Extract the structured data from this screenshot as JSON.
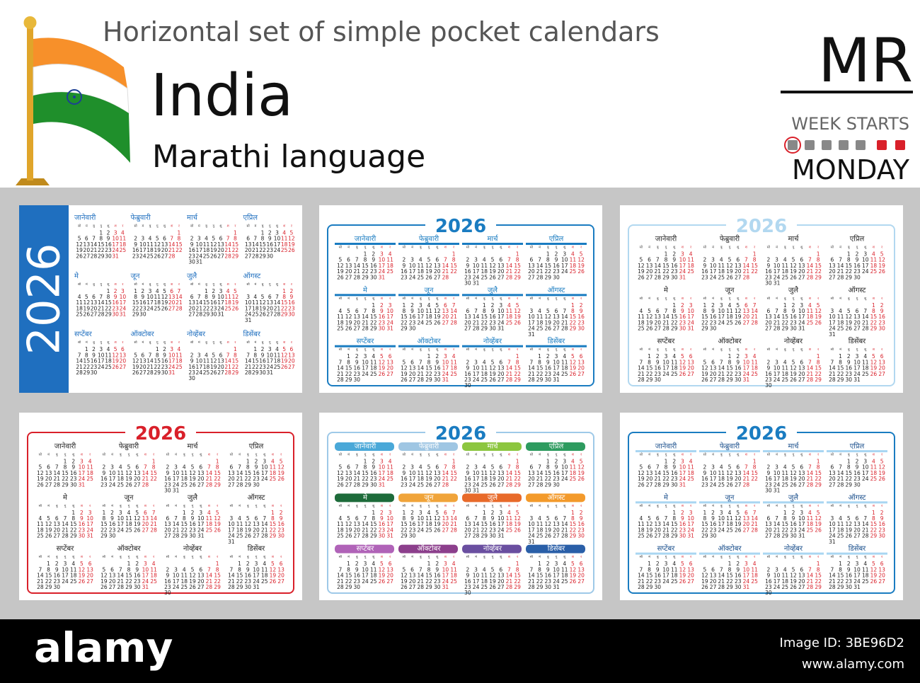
{
  "header": {
    "title": "Horizontal set of simple pocket calendars",
    "country": "India",
    "language": "Marathi language",
    "code": "MR",
    "week_label": "WEEK STARTS",
    "week_start": "MONDAY"
  },
  "calendar": {
    "year": "2026",
    "months": [
      "जानेवारी",
      "फेब्रुवारी",
      "मार्च",
      "एप्रिल",
      "मे",
      "जून",
      "जुलै",
      "ऑगस्ट",
      "सप्टेंबर",
      "ऑक्टोबर",
      "नोव्हेंबर",
      "डिसेंबर"
    ],
    "weekdays": [
      "सो",
      "मं",
      "बु",
      "गु",
      "शु",
      "श",
      "र"
    ],
    "days": [
      1,
      2,
      3,
      4,
      5,
      6,
      7,
      8,
      9,
      10,
      11,
      12,
      13,
      14,
      15,
      16,
      17,
      18,
      19,
      20,
      21,
      22,
      23,
      24,
      25,
      26,
      27,
      28,
      29,
      30,
      31
    ]
  },
  "footer": {
    "logo": "alamy",
    "image_id": "Image ID: 3BE96D2",
    "url": "www.alamy.com"
  }
}
